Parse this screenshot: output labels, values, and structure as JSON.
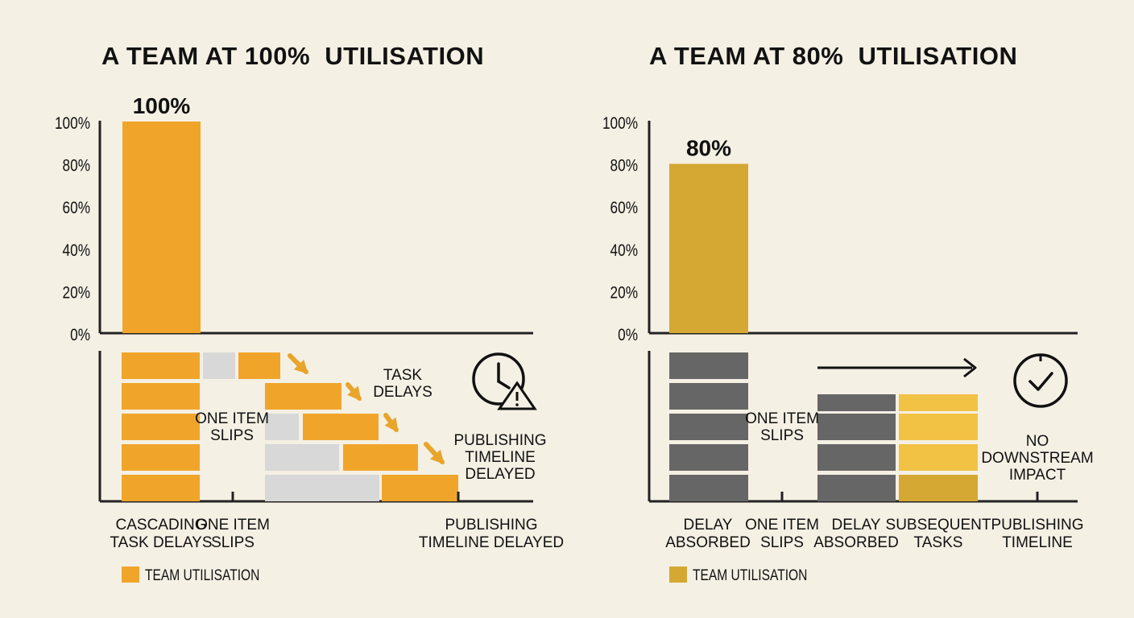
{
  "chart_data": [
    {
      "type": "bar",
      "title": "A TEAM AT 100%  UTILISATION",
      "categories": [
        "TEAM UTILISATION"
      ],
      "values": [
        100
      ],
      "value_label": "100%",
      "ylim": [
        0,
        100
      ],
      "yticks": [
        "0%",
        "20%",
        "40%",
        "60%",
        "80%",
        "100%"
      ],
      "legend": "TEAM UTILISATION",
      "colors": {
        "bar": "#f0a52a",
        "block": "#f0a52a",
        "slip": "#d8d8d8",
        "arrow": "#e8a52a"
      },
      "diagram": {
        "annotations": [
          "ONE ITEM SLIPS",
          "TASK DELAYS",
          "PUBLISHING TIMELINE DELAYED"
        ],
        "icon": "clock-warning-icon",
        "axis_labels": [
          "CASCADING TASK DELAYS",
          "ONE ITEM SLIPS",
          "PUBLISHING TIMELINE DELAYED"
        ]
      }
    },
    {
      "type": "bar",
      "title": "A TEAM AT 80%  UTILISATION",
      "categories": [
        "TEAM UTILISATION"
      ],
      "values": [
        80
      ],
      "value_label": "80%",
      "ylim": [
        0,
        100
      ],
      "yticks": [
        "0%",
        "20%",
        "40%",
        "60%",
        "80%",
        "100%"
      ],
      "legend": "TEAM UTILISATION",
      "colors": {
        "bar": "#d4a832",
        "block": "#666666",
        "subsequent": "#f2c244",
        "subsequent_dark": "#d4a832"
      },
      "diagram": {
        "annotations": [
          "ONE ITEM SLIPS",
          "NO DOWNSTREAM IMPACT"
        ],
        "icon": "clock-check-icon",
        "axis_labels": [
          "DELAY ABSORBED",
          "ONE ITEM SLIPS",
          "DELAY ABSORBED",
          "SUBSEQUENT TASKS",
          "PUBLISHING TIMELINE"
        ]
      }
    }
  ]
}
